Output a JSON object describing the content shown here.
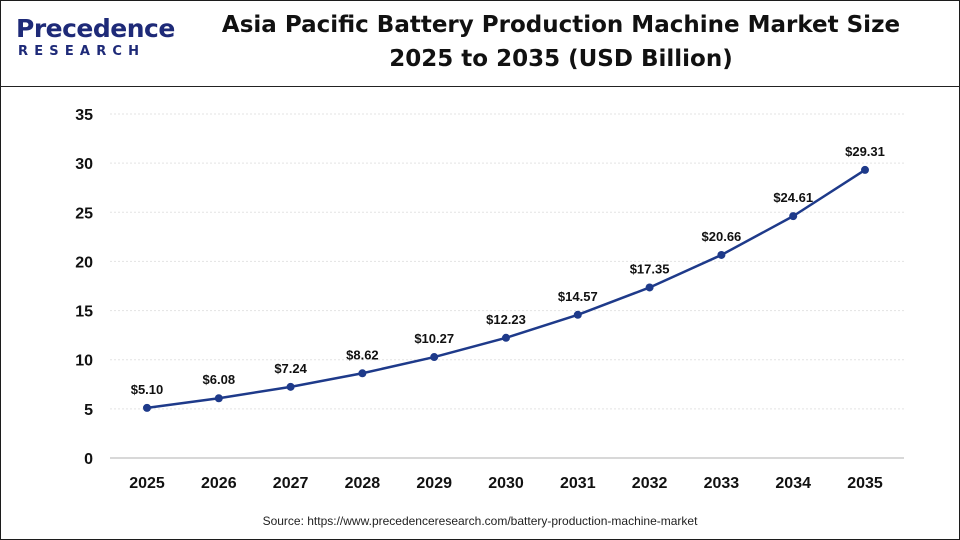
{
  "brand": {
    "logo_line1": "Precedence",
    "logo_line2": "RESEARCH"
  },
  "header": {
    "title_line1": "Asia Pacific Battery Production Machine Market Size",
    "title_line2": "2025 to 2035 (USD Billion)"
  },
  "source": "Source: https://www.precedenceresearch.com/battery-production-machine-market",
  "colors": {
    "line": "#1e3a8a",
    "brand": "#1e2a78",
    "grid": "#e3e3e3"
  },
  "chart_data": {
    "type": "line",
    "categories": [
      "2025",
      "2026",
      "2027",
      "2028",
      "2029",
      "2030",
      "2031",
      "2032",
      "2033",
      "2034",
      "2035"
    ],
    "series": [
      {
        "values": [
          5.1,
          6.08,
          7.24,
          8.62,
          10.27,
          12.23,
          14.57,
          17.35,
          20.66,
          24.61,
          29.31
        ],
        "labels": [
          "$5.10",
          "$6.08",
          "$7.24",
          "$8.62",
          "$10.27",
          "$12.23",
          "$14.57",
          "$17.35",
          "$20.66",
          "$24.61",
          "$29.31"
        ]
      }
    ],
    "ylim": [
      0,
      35
    ],
    "yticks": [
      0,
      5,
      10,
      15,
      20,
      25,
      30,
      35
    ],
    "grid": true,
    "xlabel": "",
    "ylabel": ""
  }
}
